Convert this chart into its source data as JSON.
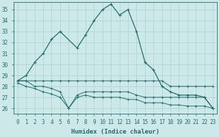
{
  "xlabel": "Humidex (Indice chaleur)",
  "background_color": "#cce8e8",
  "grid_color": "#aad0d0",
  "line_color": "#1e6b6b",
  "xlim": [
    -0.5,
    23.5
  ],
  "ylim": [
    25.5,
    35.7
  ],
  "xticks": [
    0,
    1,
    2,
    3,
    4,
    5,
    6,
    7,
    8,
    9,
    10,
    11,
    12,
    13,
    14,
    15,
    16,
    17,
    18,
    19,
    20,
    21,
    22,
    23
  ],
  "yticks": [
    26,
    27,
    28,
    29,
    30,
    31,
    32,
    33,
    34,
    35
  ],
  "series_main": {
    "x": [
      0,
      1,
      2,
      3,
      4,
      5,
      7,
      8,
      9,
      10,
      11,
      12,
      13,
      14,
      15,
      16,
      17,
      18,
      19,
      20,
      21,
      22,
      23
    ],
    "y": [
      28.5,
      29.0,
      30.2,
      31.0,
      32.3,
      33.0,
      31.5,
      32.7,
      34.0,
      35.0,
      35.5,
      34.5,
      35.0,
      33.0,
      30.2,
      29.5,
      28.0,
      27.5,
      27.2,
      27.2,
      27.2,
      27.0,
      26.0
    ]
  },
  "series_flat1": {
    "x": [
      0,
      1,
      2,
      3,
      4,
      5,
      6,
      7,
      8,
      9,
      10,
      11,
      12,
      13,
      14,
      15,
      16,
      17,
      18,
      19,
      20,
      21,
      22,
      23
    ],
    "y": [
      28.5,
      28.5,
      28.5,
      28.5,
      28.5,
      28.5,
      28.5,
      28.5,
      28.5,
      28.5,
      28.5,
      28.5,
      28.5,
      28.5,
      28.5,
      28.5,
      28.5,
      28.5,
      28.0,
      28.0,
      28.0,
      28.0,
      28.0,
      28.0
    ]
  },
  "series_dip1": {
    "x": [
      0,
      1,
      2,
      3,
      4,
      5,
      6,
      7,
      8,
      9,
      10,
      11,
      12,
      13,
      14,
      15,
      16,
      17,
      18,
      19,
      20,
      21,
      22,
      23
    ],
    "y": [
      28.5,
      28.5,
      28.0,
      28.0,
      27.8,
      27.5,
      26.0,
      27.2,
      27.5,
      27.5,
      27.5,
      27.5,
      27.5,
      27.5,
      27.2,
      27.0,
      27.0,
      27.0,
      27.0,
      27.0,
      27.0,
      27.0,
      27.0,
      26.0
    ]
  },
  "series_dip2": {
    "x": [
      0,
      1,
      2,
      3,
      4,
      5,
      6,
      7,
      8,
      9,
      10,
      11,
      12,
      13,
      14,
      15,
      16,
      17,
      18,
      19,
      20,
      21,
      22,
      23
    ],
    "y": [
      28.3,
      28.0,
      27.8,
      27.5,
      27.3,
      27.0,
      26.0,
      27.0,
      27.2,
      27.0,
      27.0,
      27.0,
      27.0,
      26.8,
      26.8,
      26.5,
      26.5,
      26.5,
      26.3,
      26.3,
      26.2,
      26.2,
      26.2,
      26.0
    ]
  }
}
